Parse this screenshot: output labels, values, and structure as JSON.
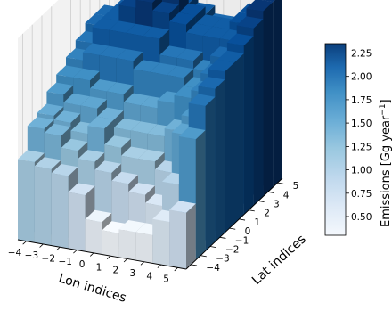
{
  "chart_data": {
    "type": "bar3d",
    "x_label": "Lon indices",
    "y_label": "Lat indices",
    "colorbar_label": "Emissions [Gg year",
    "colorbar_label_exp": "−1",
    "colorbar_label_close": "]",
    "x_ticks": [
      "−4",
      "−3",
      "−2",
      "−1",
      "0",
      "1",
      "2",
      "3",
      "4",
      "5"
    ],
    "y_ticks": [
      "−4",
      "−3",
      "−2",
      "−1",
      "0",
      "1",
      "2",
      "3",
      "4",
      "5"
    ],
    "colorbar_ticks": [
      "0.50",
      "0.75",
      "1.00",
      "1.25",
      "1.50",
      "1.75",
      "2.00",
      "2.25"
    ],
    "colorbar_range": [
      0.3,
      2.35
    ],
    "x_range": [
      -4,
      5
    ],
    "y_range": [
      -4,
      5
    ],
    "z_range": [
      0,
      2.5
    ],
    "colormap": "Blues",
    "grid": true,
    "colorbar_position": "right",
    "values": [
      [
        1.0,
        0.95,
        0.9,
        0.7,
        0.4,
        0.3,
        0.35,
        0.35,
        0.55,
        0.7
      ],
      [
        1.3,
        1.25,
        1.1,
        1.0,
        0.9,
        0.8,
        0.7,
        0.6,
        0.9,
        1.5
      ],
      [
        1.35,
        1.3,
        1.2,
        1.3,
        1.1,
        1.0,
        1.0,
        0.9,
        1.4,
        1.8
      ],
      [
        1.5,
        1.4,
        1.4,
        1.3,
        1.2,
        1.2,
        1.2,
        1.3,
        1.5,
        1.9
      ],
      [
        1.6,
        1.6,
        1.5,
        1.5,
        1.4,
        1.4,
        1.5,
        1.6,
        1.7,
        2.0
      ],
      [
        1.7,
        1.8,
        1.8,
        1.8,
        1.7,
        1.7,
        1.7,
        1.6,
        1.8,
        2.0
      ],
      [
        1.8,
        2.0,
        2.0,
        2.0,
        2.0,
        1.8,
        1.8,
        1.7,
        1.9,
        2.1
      ],
      [
        1.9,
        2.0,
        2.2,
        2.3,
        2.2,
        2.1,
        2.0,
        2.0,
        2.0,
        2.2
      ],
      [
        1.9,
        2.0,
        2.2,
        2.3,
        2.3,
        2.1,
        2.0,
        2.0,
        2.1,
        2.3
      ],
      [
        1.7,
        1.8,
        2.0,
        2.1,
        2.1,
        2.0,
        1.9,
        1.9,
        2.1,
        2.3
      ]
    ]
  }
}
